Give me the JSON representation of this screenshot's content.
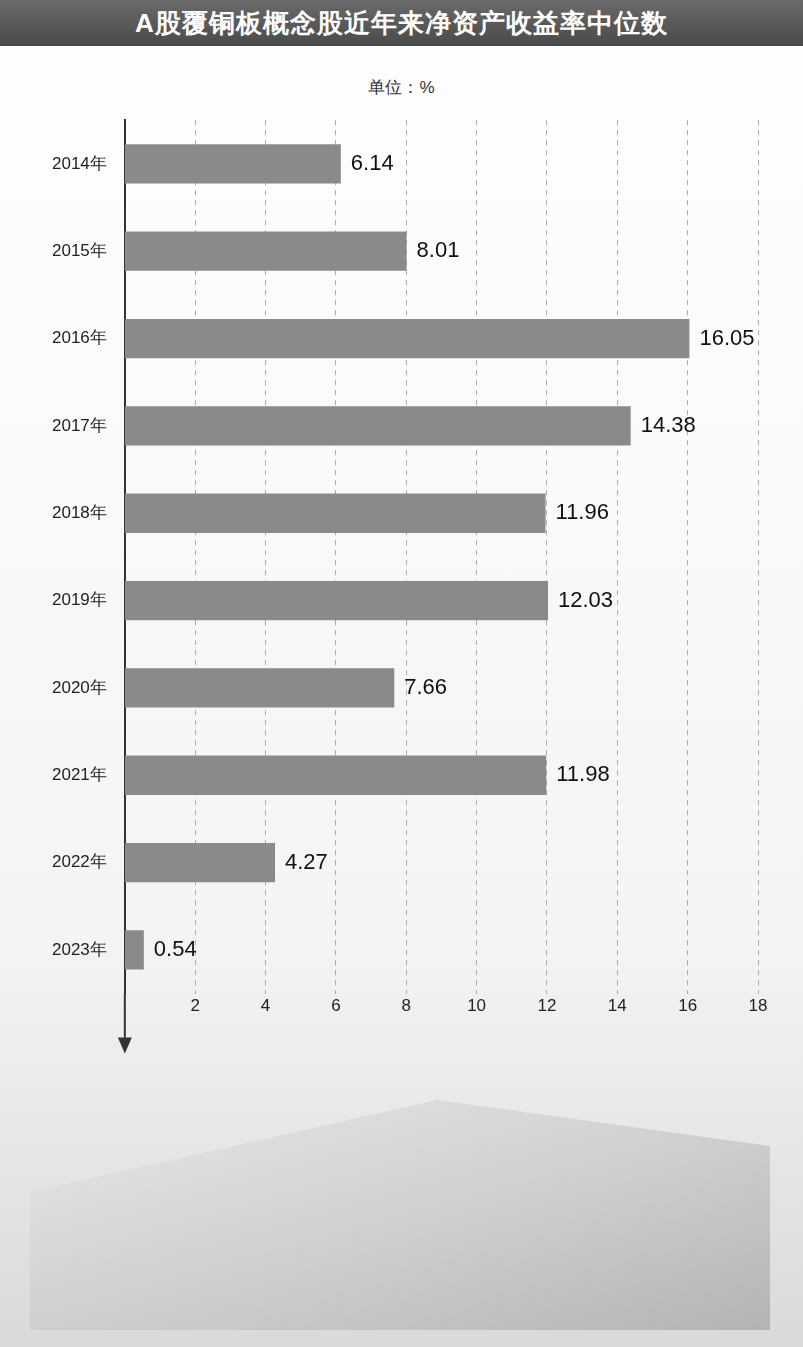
{
  "chart_data": {
    "type": "bar",
    "orientation": "horizontal",
    "title": "A股覆铜板概念股近年来净资产收益率中位数",
    "subtitle": "单位：%",
    "categories": [
      "2014年",
      "2015年",
      "2016年",
      "2017年",
      "2018年",
      "2019年",
      "2020年",
      "2021年",
      "2022年",
      "2023年"
    ],
    "values": [
      6.14,
      8.01,
      16.05,
      14.38,
      11.96,
      12.03,
      7.66,
      11.98,
      4.27,
      0.54
    ],
    "color": "#8a8a8a",
    "xlim": [
      0,
      18
    ],
    "xticks": [
      2,
      4,
      6,
      8,
      10,
      12,
      14,
      16,
      18
    ],
    "grid": true,
    "data_labels": true
  }
}
